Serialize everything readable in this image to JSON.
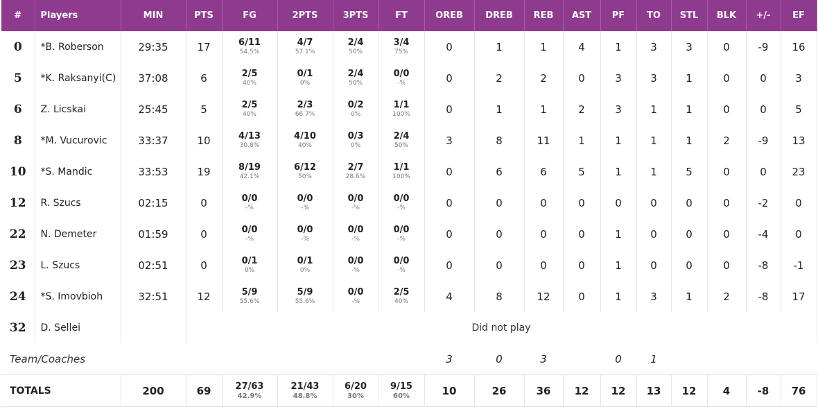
{
  "headers": [
    "#",
    "Players",
    "MIN",
    "PTS",
    "FG",
    "2PTS",
    "3PTS",
    "FT",
    "OREB",
    "DREB",
    "REB",
    "AST",
    "PF",
    "TO",
    "STL",
    "BLK",
    "+/-",
    "EF"
  ],
  "rows": [
    {
      "num": "0",
      "name": "*B. Roberson",
      "min": "29:35",
      "pts": "17",
      "fg": [
        "6/11",
        "54.5%"
      ],
      "p2": [
        "4/7",
        "57.1%"
      ],
      "p3": [
        "2/4",
        "50%"
      ],
      "ft": [
        "3/4",
        "75%"
      ],
      "oreb": "0",
      "dreb": "1",
      "reb": "1",
      "ast": "4",
      "pf": "1",
      "to": "3",
      "stl": "3",
      "blk": "0",
      "pm": "-9",
      "ef": "16"
    },
    {
      "num": "5",
      "name": "*K. Raksanyi(C)",
      "min": "37:08",
      "pts": "6",
      "fg": [
        "2/5",
        "40%"
      ],
      "p2": [
        "0/1",
        "0%"
      ],
      "p3": [
        "2/4",
        "50%"
      ],
      "ft": [
        "0/0",
        "-%"
      ],
      "oreb": "0",
      "dreb": "2",
      "reb": "2",
      "ast": "0",
      "pf": "3",
      "to": "3",
      "stl": "1",
      "blk": "0",
      "pm": "0",
      "ef": "3"
    },
    {
      "num": "6",
      "name": "Z. Licskai",
      "min": "25:45",
      "pts": "5",
      "fg": [
        "2/5",
        "40%"
      ],
      "p2": [
        "2/3",
        "66.7%"
      ],
      "p3": [
        "0/2",
        "0%"
      ],
      "ft": [
        "1/1",
        "100%"
      ],
      "oreb": "0",
      "dreb": "1",
      "reb": "1",
      "ast": "2",
      "pf": "3",
      "to": "1",
      "stl": "1",
      "blk": "0",
      "pm": "0",
      "ef": "5"
    },
    {
      "num": "8",
      "name": "*M. Vucurovic",
      "min": "33:37",
      "pts": "10",
      "fg": [
        "4/13",
        "30.8%"
      ],
      "p2": [
        "4/10",
        "40%"
      ],
      "p3": [
        "0/3",
        "0%"
      ],
      "ft": [
        "2/4",
        "50%"
      ],
      "oreb": "3",
      "dreb": "8",
      "reb": "11",
      "ast": "1",
      "pf": "1",
      "to": "1",
      "stl": "1",
      "blk": "2",
      "pm": "-9",
      "ef": "13"
    },
    {
      "num": "10",
      "name": "*S. Mandic",
      "min": "33:53",
      "pts": "19",
      "fg": [
        "8/19",
        "42.1%"
      ],
      "p2": [
        "6/12",
        "50%"
      ],
      "p3": [
        "2/7",
        "28.6%"
      ],
      "ft": [
        "1/1",
        "100%"
      ],
      "oreb": "0",
      "dreb": "6",
      "reb": "6",
      "ast": "5",
      "pf": "1",
      "to": "1",
      "stl": "5",
      "blk": "0",
      "pm": "0",
      "ef": "23"
    },
    {
      "num": "12",
      "name": "R. Szucs",
      "min": "02:15",
      "pts": "0",
      "fg": [
        "0/0",
        "-%"
      ],
      "p2": [
        "0/0",
        "-%"
      ],
      "p3": [
        "0/0",
        "-%"
      ],
      "ft": [
        "0/0",
        "-%"
      ],
      "oreb": "0",
      "dreb": "0",
      "reb": "0",
      "ast": "0",
      "pf": "0",
      "to": "0",
      "stl": "0",
      "blk": "0",
      "pm": "-2",
      "ef": "0"
    },
    {
      "num": "22",
      "name": "N. Demeter",
      "min": "01:59",
      "pts": "0",
      "fg": [
        "0/0",
        "-%"
      ],
      "p2": [
        "0/0",
        "-%"
      ],
      "p3": [
        "0/0",
        "-%"
      ],
      "ft": [
        "0/0",
        "-%"
      ],
      "oreb": "0",
      "dreb": "0",
      "reb": "0",
      "ast": "0",
      "pf": "1",
      "to": "0",
      "stl": "0",
      "blk": "0",
      "pm": "-4",
      "ef": "0"
    },
    {
      "num": "23",
      "name": "L. Szucs",
      "min": "02:51",
      "pts": "0",
      "fg": [
        "0/1",
        "0%"
      ],
      "p2": [
        "0/1",
        "0%"
      ],
      "p3": [
        "0/0",
        "-%"
      ],
      "ft": [
        "0/0",
        "-%"
      ],
      "oreb": "0",
      "dreb": "0",
      "reb": "0",
      "ast": "0",
      "pf": "1",
      "to": "0",
      "stl": "0",
      "blk": "0",
      "pm": "-8",
      "ef": "-1"
    },
    {
      "num": "24",
      "name": "*S. Imovbioh",
      "min": "32:51",
      "pts": "12",
      "fg": [
        "5/9",
        "55.6%"
      ],
      "p2": [
        "5/9",
        "55.6%"
      ],
      "p3": [
        "0/0",
        "-%"
      ],
      "ft": [
        "2/5",
        "40%"
      ],
      "oreb": "4",
      "dreb": "8",
      "reb": "12",
      "ast": "0",
      "pf": "1",
      "to": "3",
      "stl": "1",
      "blk": "2",
      "pm": "-8",
      "ef": "17"
    },
    {
      "num": "32",
      "name": "D. Sellei",
      "dnp": "Did not play"
    }
  ],
  "team": {
    "label": "Team/Coaches",
    "oreb": "3",
    "dreb": "0",
    "reb": "3",
    "pf": "0",
    "to": "1"
  },
  "totals": {
    "label": "TOTALS",
    "min": "200",
    "pts": "69",
    "fg": [
      "27/63",
      "42.9%"
    ],
    "p2": [
      "21/43",
      "48.8%"
    ],
    "p3": [
      "6/20",
      "30%"
    ],
    "ft": [
      "9/15",
      "60%"
    ],
    "oreb": "10",
    "dreb": "26",
    "reb": "36",
    "ast": "12",
    "pf": "12",
    "to": "13",
    "stl": "12",
    "blk": "4",
    "pm": "-8",
    "ef": "76"
  },
  "colors": {
    "header_bg": "#8e3a8e",
    "header_text": "#ffffff"
  }
}
